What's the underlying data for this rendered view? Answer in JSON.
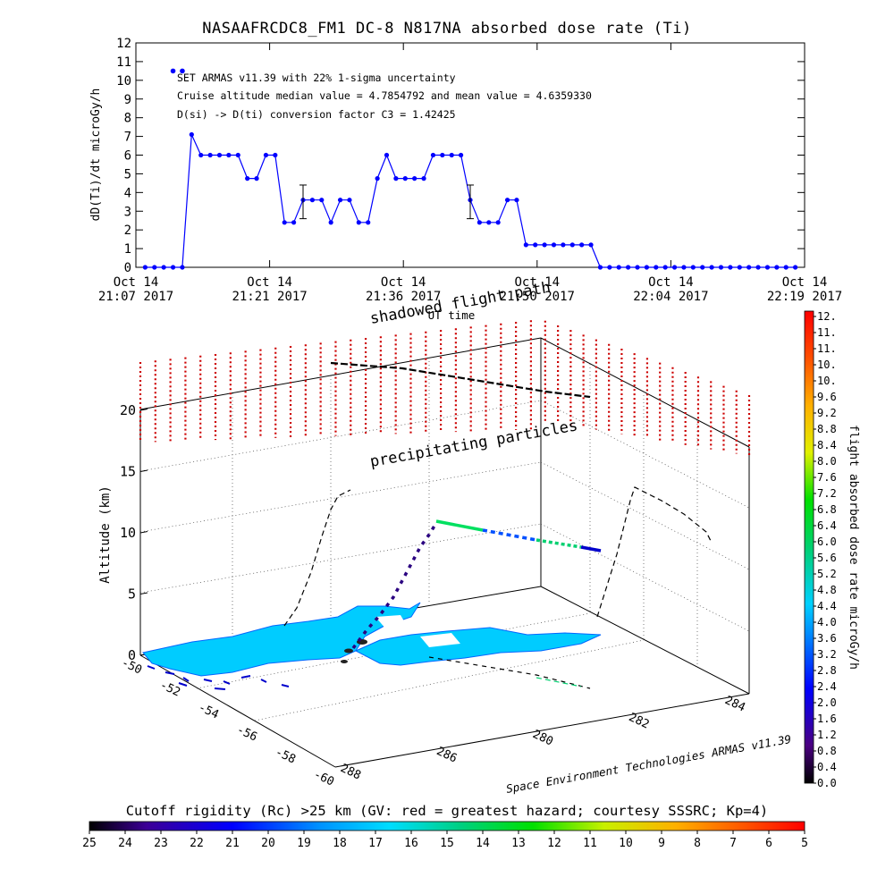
{
  "page": {
    "title": "NASAAFRCDC8_FM1 DC-8   N817NA absorbed dose rate (Ti)"
  },
  "chart_data": [
    {
      "type": "line",
      "ylabel": "dD(Ti)/dt microGy/h",
      "xlabel": "UT time",
      "ylim": [
        0,
        12
      ],
      "yticks": [
        "0",
        "1",
        "2",
        "3",
        "4",
        "5",
        "6",
        "7",
        "8",
        "9",
        "10",
        "11",
        "12"
      ],
      "xticks": [
        {
          "line1": "Oct 14",
          "line2": "21:07 2017"
        },
        {
          "line1": "Oct 14",
          "line2": "21:21 2017"
        },
        {
          "line1": "Oct 14",
          "line2": "21:36 2017"
        },
        {
          "line1": "Oct 14",
          "line2": "21:50 2017"
        },
        {
          "line1": "Oct 14",
          "line2": "22:04 2017"
        },
        {
          "line1": "Oct 14",
          "line2": "22:19 2017"
        }
      ],
      "xlim_minutes": [
        0,
        72
      ],
      "annotations": [
        "SET ARMAS v11.39 with 22% 1-sigma uncertainty",
        "Cruise altitude median value = 4.7854792 and mean value = 4.6359330",
        "D(si) -> D(ti) conversion factor C3 = 1.42425"
      ],
      "series": [
        {
          "x": [
            1,
            2,
            3,
            4,
            5,
            6,
            7,
            8,
            9,
            10,
            11,
            12,
            13,
            14,
            15,
            16,
            17,
            18,
            19,
            20,
            21,
            22,
            23,
            24,
            25,
            26,
            27,
            28,
            29,
            30,
            31,
            32,
            33,
            34,
            35,
            36,
            37,
            38,
            39,
            40,
            41,
            42,
            43,
            44,
            45,
            46,
            47,
            48,
            49,
            50,
            51,
            52,
            53,
            54,
            55,
            56,
            57,
            58,
            59,
            60,
            61,
            62,
            63,
            64,
            65,
            66,
            67,
            68,
            69,
            70,
            71
          ],
          "y": [
            0,
            0,
            0,
            0,
            0,
            7.1,
            6,
            6,
            6,
            6,
            6,
            4.75,
            4.75,
            6,
            6,
            2.4,
            2.4,
            3.6,
            3.6,
            3.6,
            2.4,
            3.6,
            3.6,
            2.4,
            2.4,
            4.75,
            6,
            4.75,
            4.75,
            4.75,
            4.75,
            6,
            6,
            6,
            6,
            3.6,
            2.4,
            2.4,
            2.4,
            3.6,
            3.6,
            1.2,
            1.2,
            1.2,
            1.2,
            1.2,
            1.2,
            1.2,
            1.2,
            0,
            0,
            0,
            0,
            0,
            0,
            0,
            0,
            0,
            0,
            0,
            0,
            0,
            0,
            0,
            0,
            0,
            0,
            0,
            0,
            0,
            0
          ]
        },
        {
          "name": "",
          "x": [
            4,
            5
          ],
          "y": [
            10.5,
            10.5
          ],
          "style": "markers"
        }
      ],
      "error_bars": [
        {
          "x": 18,
          "y": 3.6,
          "low": 2.6,
          "high": 4.4
        },
        {
          "x": 36,
          "y": 3.6,
          "low": 2.6,
          "high": 4.4
        }
      ],
      "color": "#0000ff",
      "grid": false
    },
    {
      "type": "scatter",
      "ylabel": "Altitude (km)",
      "yticks": [
        "0",
        "5",
        "10",
        "15",
        "20"
      ],
      "lat_ticks": [
        "-50",
        "-52",
        "-54",
        "-56",
        "-58",
        "-60"
      ],
      "lon_ticks": [
        "288",
        "286",
        "280",
        "282",
        "284"
      ],
      "annotations": [
        "shadowed flight path",
        "precipitating particles"
      ],
      "credit": "Space Environment Technologies ARMAS v11.39",
      "colorbar": {
        "title": "flight absorbed dose rate microGy/h",
        "ticks": [
          "12.",
          "11.",
          "11.",
          "10.",
          "10.",
          "9.6",
          "9.2",
          "8.8",
          "8.4",
          "8.0",
          "7.6",
          "7.2",
          "6.8",
          "6.4",
          "6.0",
          "5.6",
          "5.2",
          "4.8",
          "4.4",
          "4.0",
          "3.6",
          "3.2",
          "2.8",
          "2.4",
          "2.0",
          "1.6",
          "1.2",
          "0.8",
          "0.4",
          "0.0"
        ]
      },
      "flight_altitude_km": [
        0,
        0.3,
        1.5,
        3,
        5,
        7,
        8.5,
        10,
        10.3,
        10.2,
        10,
        9.9,
        9.9,
        9.8,
        9.8,
        9.7,
        9.6,
        9.5
      ]
    },
    {
      "type": "heatmap",
      "title": "Cutoff rigidity (Rc) >25 km (GV: red = greatest hazard; courtesy SSSRC; Kp=4)",
      "ticks": [
        "25",
        "24",
        "23",
        "22",
        "21",
        "20",
        "19",
        "18",
        "17",
        "16",
        "15",
        "14",
        "13",
        "12",
        "11",
        "10",
        "9",
        "8",
        "7",
        "6",
        "5"
      ]
    }
  ],
  "colors": {
    "line": "#0000ff",
    "particles": "#cc0000",
    "map_fill": "#00ccff"
  }
}
